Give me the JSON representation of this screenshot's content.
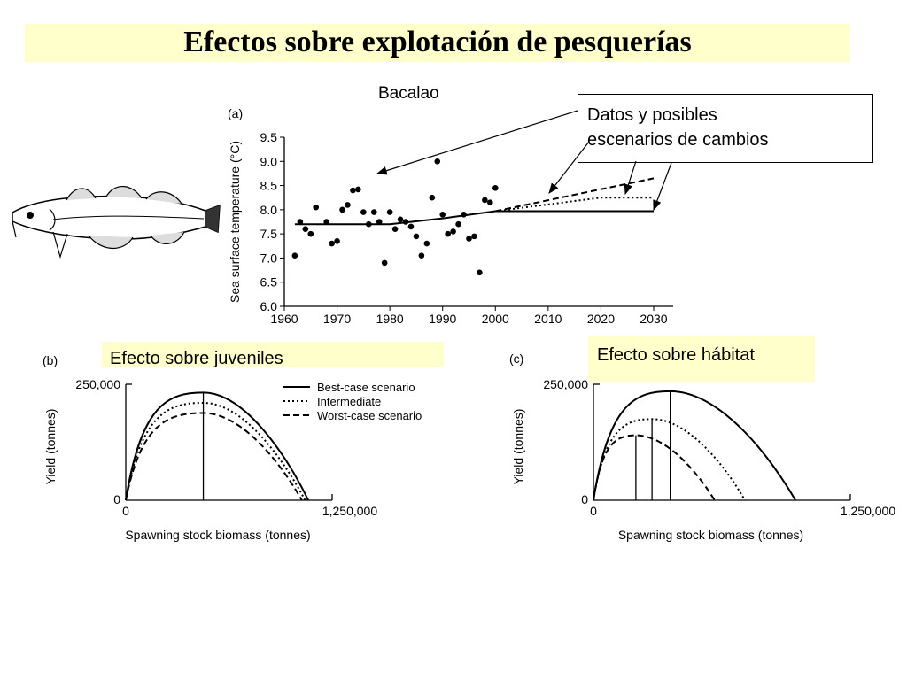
{
  "slide": {
    "title": "Efectos sobre explotación de pesquerías",
    "species_label": "Bacalao",
    "callout": [
      "Datos y posibles",
      "escenarios de cambios"
    ],
    "label_juveniles": "Efecto sobre juveniles",
    "label_habitat": "Efecto sobre hábitat",
    "illustration": "cod-fish-icon",
    "accent_color": "#ffffcc"
  },
  "chart_data": [
    {
      "panel": "(a)",
      "type": "scatter",
      "ylabel": "Sea surface temperature (°C)",
      "xlim": [
        1960,
        2030
      ],
      "ylim": [
        6.0,
        9.5
      ],
      "x_ticks": [
        "1960",
        "1970",
        "1980",
        "1990",
        "2000",
        "2010",
        "2020",
        "2030"
      ],
      "y_ticks": [
        "6.0",
        "6.5",
        "7.0",
        "7.5",
        "8.0",
        "8.5",
        "9.0",
        "9.5"
      ],
      "points": [
        [
          1962,
          7.05
        ],
        [
          1963,
          7.75
        ],
        [
          1964,
          7.6
        ],
        [
          1965,
          7.5
        ],
        [
          1966,
          8.05
        ],
        [
          1968,
          7.75
        ],
        [
          1969,
          7.3
        ],
        [
          1970,
          7.35
        ],
        [
          1971,
          8.0
        ],
        [
          1972,
          8.1
        ],
        [
          1973,
          8.4
        ],
        [
          1974,
          8.42
        ],
        [
          1975,
          7.95
        ],
        [
          1976,
          7.7
        ],
        [
          1977,
          7.95
        ],
        [
          1978,
          7.75
        ],
        [
          1979,
          6.9
        ],
        [
          1980,
          7.95
        ],
        [
          1981,
          7.6
        ],
        [
          1982,
          7.8
        ],
        [
          1983,
          7.75
        ],
        [
          1984,
          7.65
        ],
        [
          1985,
          7.45
        ],
        [
          1986,
          7.05
        ],
        [
          1987,
          7.3
        ],
        [
          1988,
          8.25
        ],
        [
          1989,
          9.0
        ],
        [
          1990,
          7.9
        ],
        [
          1991,
          7.5
        ],
        [
          1992,
          7.55
        ],
        [
          1993,
          7.7
        ],
        [
          1994,
          7.9
        ],
        [
          1995,
          7.4
        ],
        [
          1996,
          7.45
        ],
        [
          1997,
          6.7
        ],
        [
          1998,
          8.2
        ],
        [
          1999,
          8.15
        ],
        [
          2000,
          8.45
        ]
      ],
      "trend": [
        [
          1962,
          7.7
        ],
        [
          1980,
          7.7
        ],
        [
          1990,
          7.82
        ],
        [
          2000,
          7.97
        ]
      ],
      "scenarios": [
        {
          "style": "solid",
          "points": [
            [
              2000,
              7.97
            ],
            [
              2030,
              7.97
            ]
          ]
        },
        {
          "style": "dotted",
          "points": [
            [
              2000,
              7.97
            ],
            [
              2020,
              8.25
            ],
            [
              2030,
              8.25
            ]
          ]
        },
        {
          "style": "dashed",
          "points": [
            [
              2000,
              7.97
            ],
            [
              2030,
              8.65
            ]
          ]
        }
      ]
    },
    {
      "panel": "(b)",
      "type": "line",
      "xlabel": "Spawning stock biomass (tonnes)",
      "ylabel": "Yield (tonnes)",
      "x_ticks": [
        "0",
        "1,250,000"
      ],
      "y_ticks": [
        "0",
        "250,000"
      ],
      "xlim": [
        0,
        1250000
      ],
      "ylim": [
        0,
        250000
      ],
      "legend": [
        "Best-case scenario",
        "Intermediate",
        "Worst-case scenario"
      ],
      "legend_position": "top-right",
      "series": [
        {
          "style": "solid",
          "peak_x": 480000,
          "peak_y": 232000,
          "end_x": 1130000
        },
        {
          "style": "dotted",
          "peak_x": 480000,
          "peak_y": 210000,
          "end_x": 1110000
        },
        {
          "style": "dashed",
          "peak_x": 480000,
          "peak_y": 188000,
          "end_x": 1090000
        }
      ],
      "optimum_x": 480000
    },
    {
      "panel": "(c)",
      "type": "line",
      "xlabel": "Spawning stock biomass (tonnes)",
      "ylabel": "Yield (tonnes)",
      "x_ticks": [
        "0",
        "1,250,000"
      ],
      "y_ticks": [
        "0",
        "250,000"
      ],
      "xlim": [
        0,
        1250000
      ],
      "ylim": [
        0,
        250000
      ],
      "series": [
        {
          "style": "solid",
          "peak_x": 380000,
          "peak_y": 235000,
          "end_x": 1000000
        },
        {
          "style": "dotted",
          "peak_x": 290000,
          "peak_y": 175000,
          "end_x": 750000
        },
        {
          "style": "dashed",
          "peak_x": 210000,
          "peak_y": 140000,
          "end_x": 600000
        }
      ]
    }
  ]
}
